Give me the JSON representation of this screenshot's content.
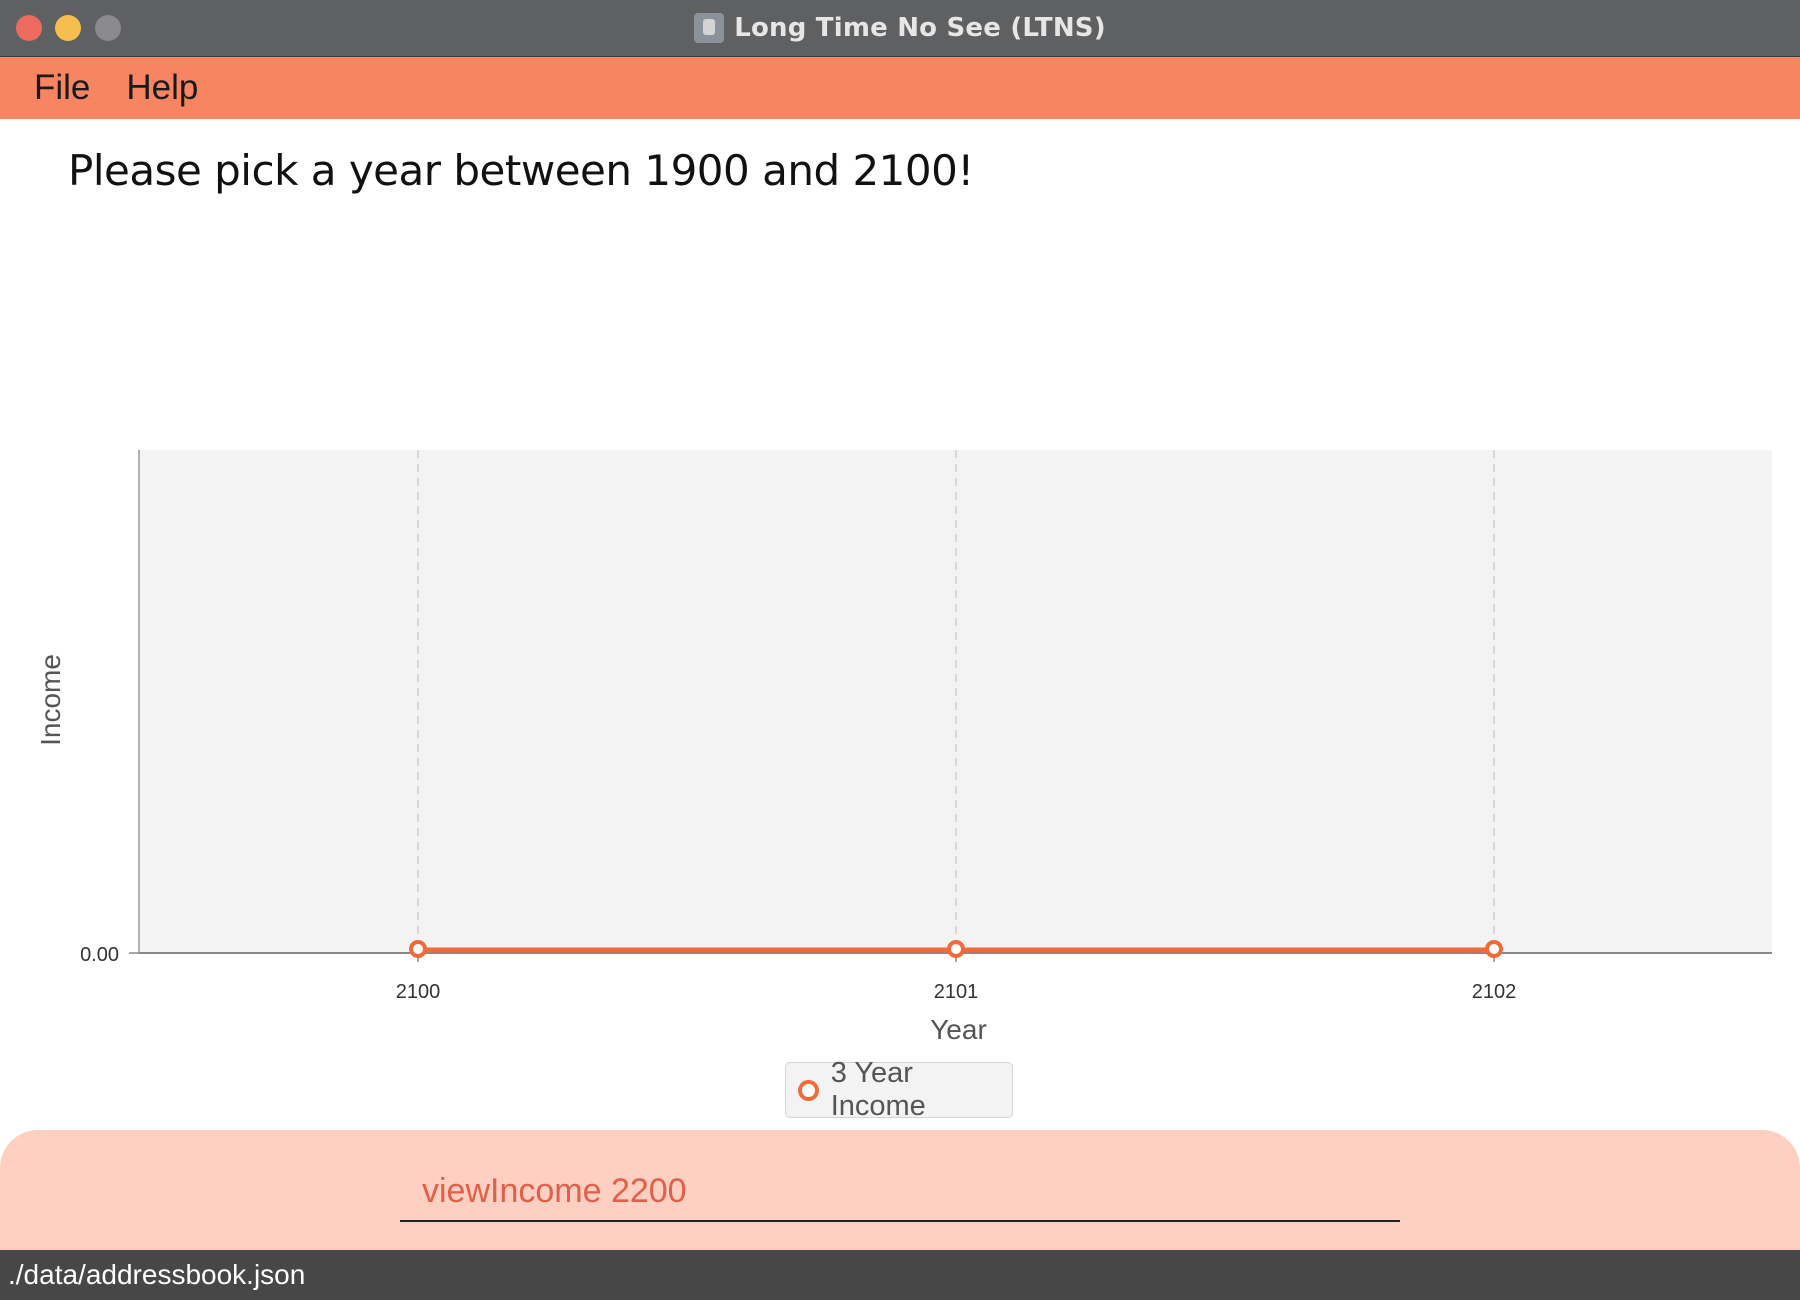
{
  "window": {
    "title": "Long Time No See (LTNS)"
  },
  "menu": {
    "file": "File",
    "help": "Help"
  },
  "result": {
    "message": "Please pick a year between 1900 and 2100!"
  },
  "chart_data": {
    "type": "line",
    "x": [
      "2100",
      "2101",
      "2102"
    ],
    "series": [
      {
        "name": "3 Year Income",
        "values": [
          0,
          0,
          0
        ],
        "color": "#f06a3a"
      }
    ],
    "xlabel": "Year",
    "ylabel": "Income",
    "y_ticks": [
      "0.00"
    ],
    "grid": "vertical dashed",
    "legend": "bottom-center"
  },
  "command": {
    "value": "viewIncome 2200"
  },
  "status": {
    "path": "./data/addressbook.json"
  }
}
